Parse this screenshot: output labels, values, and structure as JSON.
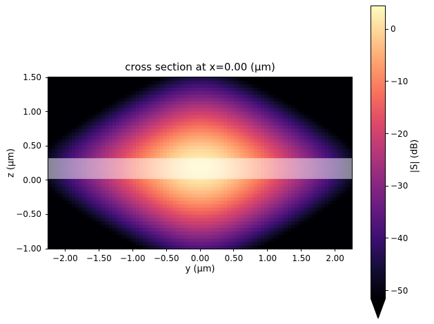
{
  "chart_data": {
    "type": "heatmap",
    "title": "cross section at x=0.00 (μm)",
    "xlabel": "y (μm)",
    "ylabel": "z (μm)",
    "x_range": [
      -2.25,
      2.25
    ],
    "y_range": [
      -1.0,
      1.5
    ],
    "x_ticks": [
      -2.0,
      -1.5,
      -1.0,
      -0.5,
      0.0,
      0.5,
      1.0,
      1.5,
      2.0
    ],
    "y_ticks": [
      1.5,
      1.0,
      0.5,
      0.0,
      -0.5,
      -1.0
    ],
    "grid": {
      "cols": 90,
      "rows": 50
    },
    "colorbar": {
      "label": "|S| (dB)",
      "vmax": 4.5,
      "vmin": -51.5,
      "ticks": [
        0,
        -10,
        -20,
        -30,
        -40,
        -50
      ],
      "extend": "min"
    },
    "colormap": {
      "name": "magma",
      "stops": [
        [
          0.0,
          "#000004"
        ],
        [
          0.1,
          "#140e36"
        ],
        [
          0.2,
          "#3b0f70"
        ],
        [
          0.3,
          "#641a80"
        ],
        [
          0.4,
          "#8c2981"
        ],
        [
          0.5,
          "#b73779"
        ],
        [
          0.6,
          "#de4968"
        ],
        [
          0.7,
          "#f7705c"
        ],
        [
          0.8,
          "#fe9f6d"
        ],
        [
          0.9,
          "#fecf92"
        ],
        [
          1.0,
          "#fcfdbf"
        ]
      ]
    },
    "field_model": {
      "description": "separable mode profile in dB: peak_db - amp_y*h(y/sigma_y) - amp_z*h((z-center_z)/sigma_z), h(u)=sqrt(1+u^2)-1",
      "peak_db": 3.5,
      "center_z": 0.18,
      "sigma_y": 0.6,
      "amp_y": 17.5,
      "sigma_z": 0.45,
      "amp_z": 23.0
    },
    "overlay_band": {
      "z_min": 0.02,
      "z_max": 0.32,
      "color": "rgba(255,255,255,0.5)"
    }
  }
}
